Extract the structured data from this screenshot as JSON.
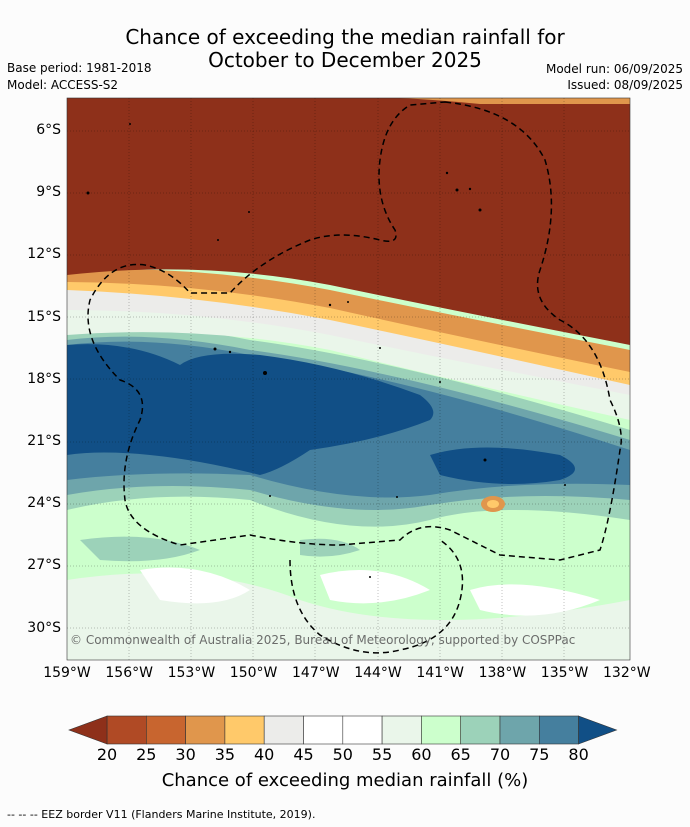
{
  "title_line1": "Chance of exceeding the median rainfall for",
  "title_line2": "October to December 2025",
  "base_period": "Base period: 1981-2018",
  "model": "Model: ACCESS-S2",
  "model_run": "Model run: 06/09/2025",
  "issued": "Issued: 08/09/2025",
  "copyright": "© Commonwealth of Australia 2025, Bureau of Meteorology, supported by COSPPac",
  "lat_labels": [
    "6°S",
    "9°S",
    "12°S",
    "15°S",
    "18°S",
    "21°S",
    "24°S",
    "27°S",
    "30°S"
  ],
  "lon_labels": [
    "159°W",
    "156°W",
    "153°W",
    "150°W",
    "147°W",
    "144°W",
    "141°W",
    "138°W",
    "135°W",
    "132°W"
  ],
  "colorbar": {
    "ticks": [
      "20",
      "25",
      "30",
      "35",
      "40",
      "45",
      "50",
      "55",
      "60",
      "65",
      "70",
      "75",
      "80"
    ],
    "label": "Chance of exceeding median rainfall (%)",
    "colors": [
      "#b04a25",
      "#c8652f",
      "#e0964c",
      "#ffc96a",
      "#ececea",
      "#ffffff",
      "#ffffff",
      "#eaf6ea",
      "#ccffcc",
      "#9cd2b9",
      "#6ea5ab",
      "#457f9e"
    ],
    "under_color": "#8e301a",
    "over_color": "#114f86"
  },
  "footer": "-- -- -- EEZ border V11 (Flanders Marine Institute, 2019)."
}
